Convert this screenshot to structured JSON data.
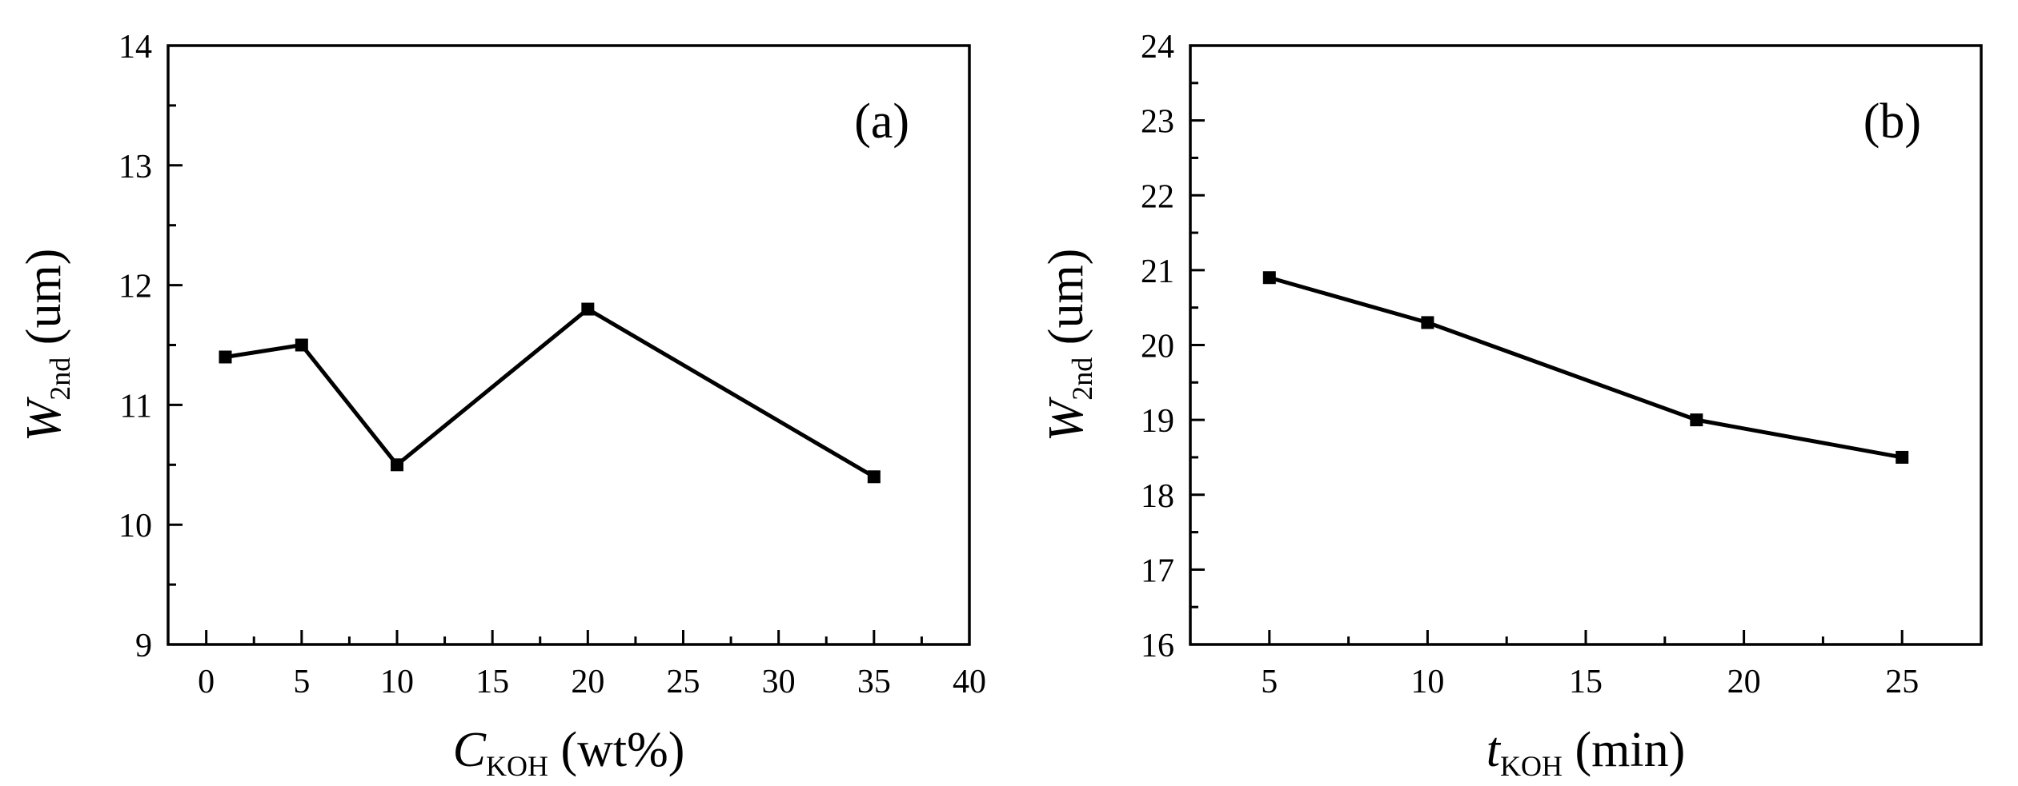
{
  "chart_data": [
    {
      "type": "line",
      "panel_label": "(a)",
      "x": [
        1,
        5,
        10,
        20,
        35
      ],
      "series": [
        {
          "values": [
            11.4,
            11.5,
            10.5,
            11.8,
            10.4
          ]
        }
      ],
      "xlim": [
        -2,
        40
      ],
      "ylim": [
        9,
        14
      ],
      "xticks": [
        0,
        5,
        10,
        15,
        20,
        25,
        30,
        35,
        40
      ],
      "yticks": [
        9,
        10,
        11,
        12,
        13,
        14
      ],
      "xlabel": {
        "main": "C",
        "sub": "KOH",
        "unit": "(wt%)"
      },
      "ylabel": {
        "main": "W",
        "sub": "2nd",
        "unit": "(um)"
      },
      "marker": "square",
      "grid": false
    },
    {
      "type": "line",
      "panel_label": "(b)",
      "x": [
        5,
        10,
        18.5,
        25
      ],
      "series": [
        {
          "values": [
            20.9,
            20.3,
            19.0,
            18.5
          ]
        }
      ],
      "xlim": [
        2.5,
        27.5
      ],
      "ylim": [
        16,
        24
      ],
      "xticks": [
        5,
        10,
        15,
        20,
        25
      ],
      "yticks": [
        16,
        17,
        18,
        19,
        20,
        21,
        22,
        23,
        24
      ],
      "xlabel": {
        "main": "t",
        "sub": "KOH",
        "unit": "(min)"
      },
      "ylabel": {
        "main": "W",
        "sub": "2nd",
        "unit": "(um)"
      },
      "marker": "square",
      "grid": false
    }
  ]
}
